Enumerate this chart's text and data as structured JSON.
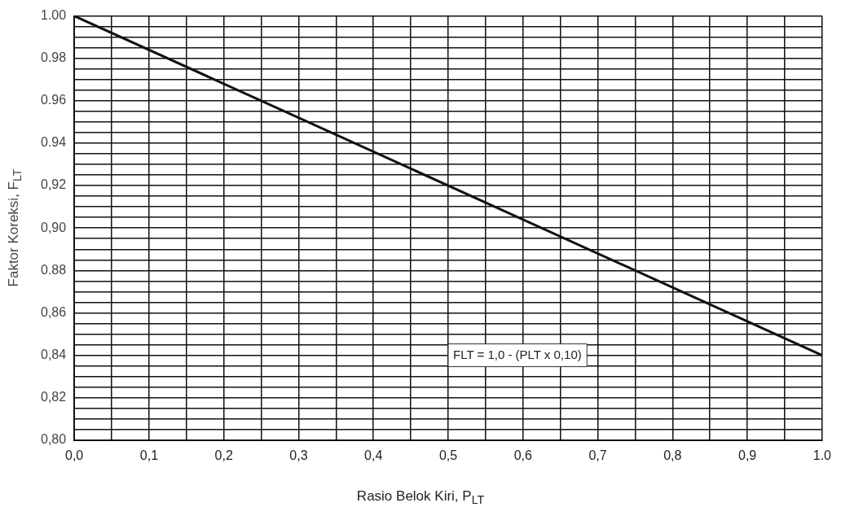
{
  "chart_data": {
    "type": "line",
    "xlabel": "Rasio Belok Kiri, P$_{LT}$",
    "ylabel": "Faktor Koreksi, F$_{LT}$",
    "x": [
      0,
      1
    ],
    "series": [
      {
        "color": "#111111",
        "values": [
          1.0,
          0.84
        ]
      }
    ],
    "xlim": [
      0,
      1
    ],
    "ylim": [
      0.8,
      1
    ],
    "xticks": [
      {
        "value": 0,
        "label": "0,0"
      },
      {
        "value": 0.05,
        "label": null
      },
      {
        "value": 0.1,
        "label": "0,1"
      },
      {
        "value": 0.15,
        "label": null
      },
      {
        "value": 0.2,
        "label": "0,2"
      },
      {
        "value": 0.25,
        "label": null
      },
      {
        "value": 0.3,
        "label": "0,3"
      },
      {
        "value": 0.35,
        "label": null
      },
      {
        "value": 0.4,
        "label": "0,4"
      },
      {
        "value": 0.45,
        "label": null
      },
      {
        "value": 0.5,
        "label": "0,5"
      },
      {
        "value": 0.55,
        "label": null
      },
      {
        "value": 0.6,
        "label": "0,6"
      },
      {
        "value": 0.65,
        "label": null
      },
      {
        "value": 0.7,
        "label": "0,7"
      },
      {
        "value": 0.75,
        "label": null
      },
      {
        "value": 0.8,
        "label": "0,8"
      },
      {
        "value": 0.85,
        "label": null
      },
      {
        "value": 0.9,
        "label": "0,9"
      },
      {
        "value": 0.95,
        "label": null
      },
      {
        "value": 1,
        "label": "1.0"
      }
    ],
    "yticks": [
      {
        "value": 0.8,
        "label": "0,80"
      },
      {
        "value": 0.805,
        "label": null
      },
      {
        "value": 0.81,
        "label": null
      },
      {
        "value": 0.815,
        "label": null
      },
      {
        "value": 0.82,
        "label": "0,82"
      },
      {
        "value": 0.825,
        "label": null
      },
      {
        "value": 0.83,
        "label": null
      },
      {
        "value": 0.835,
        "label": null
      },
      {
        "value": 0.84,
        "label": "0,84"
      },
      {
        "value": 0.845,
        "label": null
      },
      {
        "value": 0.85,
        "label": null
      },
      {
        "value": 0.855,
        "label": null
      },
      {
        "value": 0.86,
        "label": "0,86"
      },
      {
        "value": 0.865,
        "label": null
      },
      {
        "value": 0.87,
        "label": null
      },
      {
        "value": 0.875,
        "label": null
      },
      {
        "value": 0.88,
        "label": "0.88"
      },
      {
        "value": 0.885,
        "label": null
      },
      {
        "value": 0.89,
        "label": null
      },
      {
        "value": 0.895,
        "label": null
      },
      {
        "value": 0.9,
        "label": "0,90"
      },
      {
        "value": 0.905,
        "label": null
      },
      {
        "value": 0.91,
        "label": null
      },
      {
        "value": 0.915,
        "label": null
      },
      {
        "value": 0.92,
        "label": "0,92"
      },
      {
        "value": 0.925,
        "label": null
      },
      {
        "value": 0.93,
        "label": null
      },
      {
        "value": 0.935,
        "label": null
      },
      {
        "value": 0.94,
        "label": "0.94"
      },
      {
        "value": 0.945,
        "label": null
      },
      {
        "value": 0.95,
        "label": null
      },
      {
        "value": 0.955,
        "label": null
      },
      {
        "value": 0.96,
        "label": "0.96"
      },
      {
        "value": 0.965,
        "label": null
      },
      {
        "value": 0.97,
        "label": null
      },
      {
        "value": 0.975,
        "label": null
      },
      {
        "value": 0.98,
        "label": "0.98"
      },
      {
        "value": 0.985,
        "label": null
      },
      {
        "value": 0.99,
        "label": null
      },
      {
        "value": 0.995,
        "label": null
      },
      {
        "value": 1,
        "label": "1.00"
      }
    ],
    "grid": true,
    "marker": "none",
    "line_style": "solid",
    "annotations": [
      "FLT = 1,0 - (PLT x 0,10)"
    ]
  }
}
